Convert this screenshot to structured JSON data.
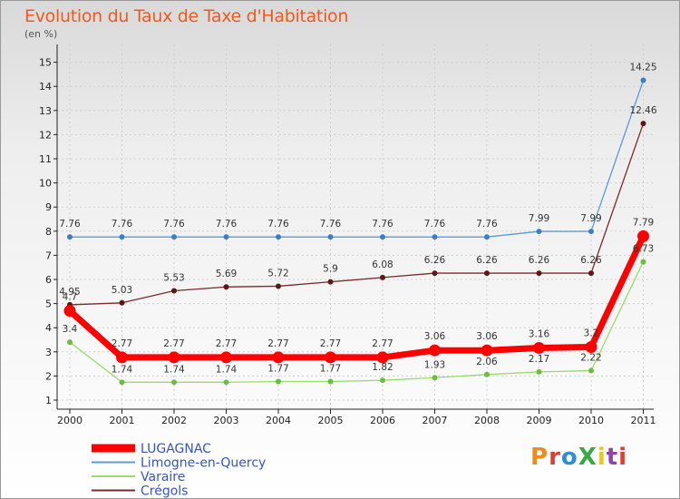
{
  "title": "Evolution du Taux de Taxe d'Habitation",
  "subtitle": "(en %)",
  "logo": {
    "text": "ProXiti",
    "colors": [
      "#f08c1e",
      "#e23c2c",
      "#2b8fd6",
      "#39a845",
      "#f0c419",
      "#8e44ad",
      "#e23c2c"
    ]
  },
  "chart_data": {
    "type": "line",
    "x": [
      "2000",
      "2001",
      "2002",
      "2003",
      "2004",
      "2005",
      "2006",
      "2007",
      "2008",
      "2009",
      "2010",
      "2011"
    ],
    "ylim": [
      1,
      15
    ],
    "yticks": [
      "1",
      "2",
      "3",
      "4",
      "5",
      "6",
      "7",
      "8",
      "9",
      "10",
      "11",
      "12",
      "13",
      "14",
      "15"
    ],
    "grid": true,
    "legend_position": "bottom-left",
    "series": [
      {
        "name": "Limogne-en-Quercy",
        "color": "#5a9ad5",
        "marker_color": "#3a7fc4",
        "values": [
          7.76,
          7.76,
          7.76,
          7.76,
          7.76,
          7.76,
          7.76,
          7.76,
          7.76,
          7.99,
          7.99,
          14.25
        ],
        "labels": [
          "7.76",
          "7.76",
          "7.76",
          "7.76",
          "7.76",
          "7.76",
          "7.76",
          "7.76",
          "7.76",
          "7.99",
          "7.99",
          "14.25"
        ]
      },
      {
        "name": "Crégols",
        "color": "#7a2a2a",
        "marker_color": "#5a1818",
        "values": [
          4.95,
          5.03,
          5.53,
          5.69,
          5.72,
          5.9,
          6.08,
          6.26,
          6.26,
          6.26,
          6.26,
          12.46
        ],
        "labels": [
          "4.95",
          "5.03",
          "5.53",
          "5.69",
          "5.72",
          "5.9",
          "6.08",
          "6.26",
          "6.26",
          "6.26",
          "6.26",
          "12.46"
        ]
      },
      {
        "name": "Varaire",
        "color": "#99dd66",
        "marker_color": "#6cbf3a",
        "values": [
          3.4,
          1.74,
          1.74,
          1.74,
          1.77,
          1.77,
          1.82,
          1.93,
          2.06,
          2.17,
          2.22,
          6.73
        ],
        "labels": [
          "3.4",
          "1.74",
          "1.74",
          "1.74",
          "1.77",
          "1.77",
          "1.82",
          "1.93",
          "2.06",
          "2.17",
          "2.22",
          "6.73"
        ]
      },
      {
        "name": "LUGAGNAC",
        "color": "#ff0000",
        "marker_color": "#ff0000",
        "values": [
          4.7,
          2.77,
          2.77,
          2.77,
          2.77,
          2.77,
          2.77,
          3.06,
          3.06,
          3.16,
          3.2,
          7.79
        ],
        "labels": [
          "4.7",
          "2.77",
          "2.77",
          "2.77",
          "2.77",
          "2.77",
          "2.77",
          "3.06",
          "3.06",
          "3.16",
          "3.2",
          "7.79"
        ]
      }
    ],
    "legend_order": [
      "LUGAGNAC",
      "Limogne-en-Quercy",
      "Varaire",
      "Crégols"
    ]
  }
}
